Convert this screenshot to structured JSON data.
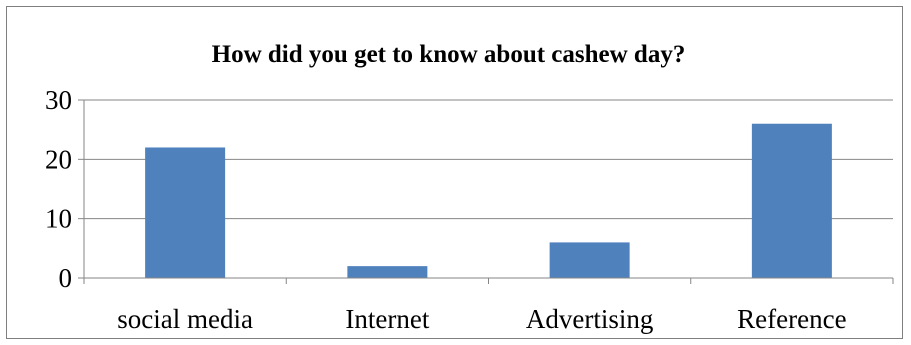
{
  "chart_data": {
    "type": "bar",
    "title": "How did you get to know about cashew day?",
    "xlabel": "",
    "ylabel": "",
    "categories": [
      "social media",
      "Internet",
      "Advertising",
      "Reference"
    ],
    "values": [
      22,
      2,
      6,
      26
    ],
    "ylim": [
      0,
      30
    ],
    "yticks": [
      "0",
      "10",
      "20",
      "30"
    ],
    "grid": true,
    "legend": "none",
    "bar_color": "#4f81bd",
    "gridline_color": "#868686"
  }
}
